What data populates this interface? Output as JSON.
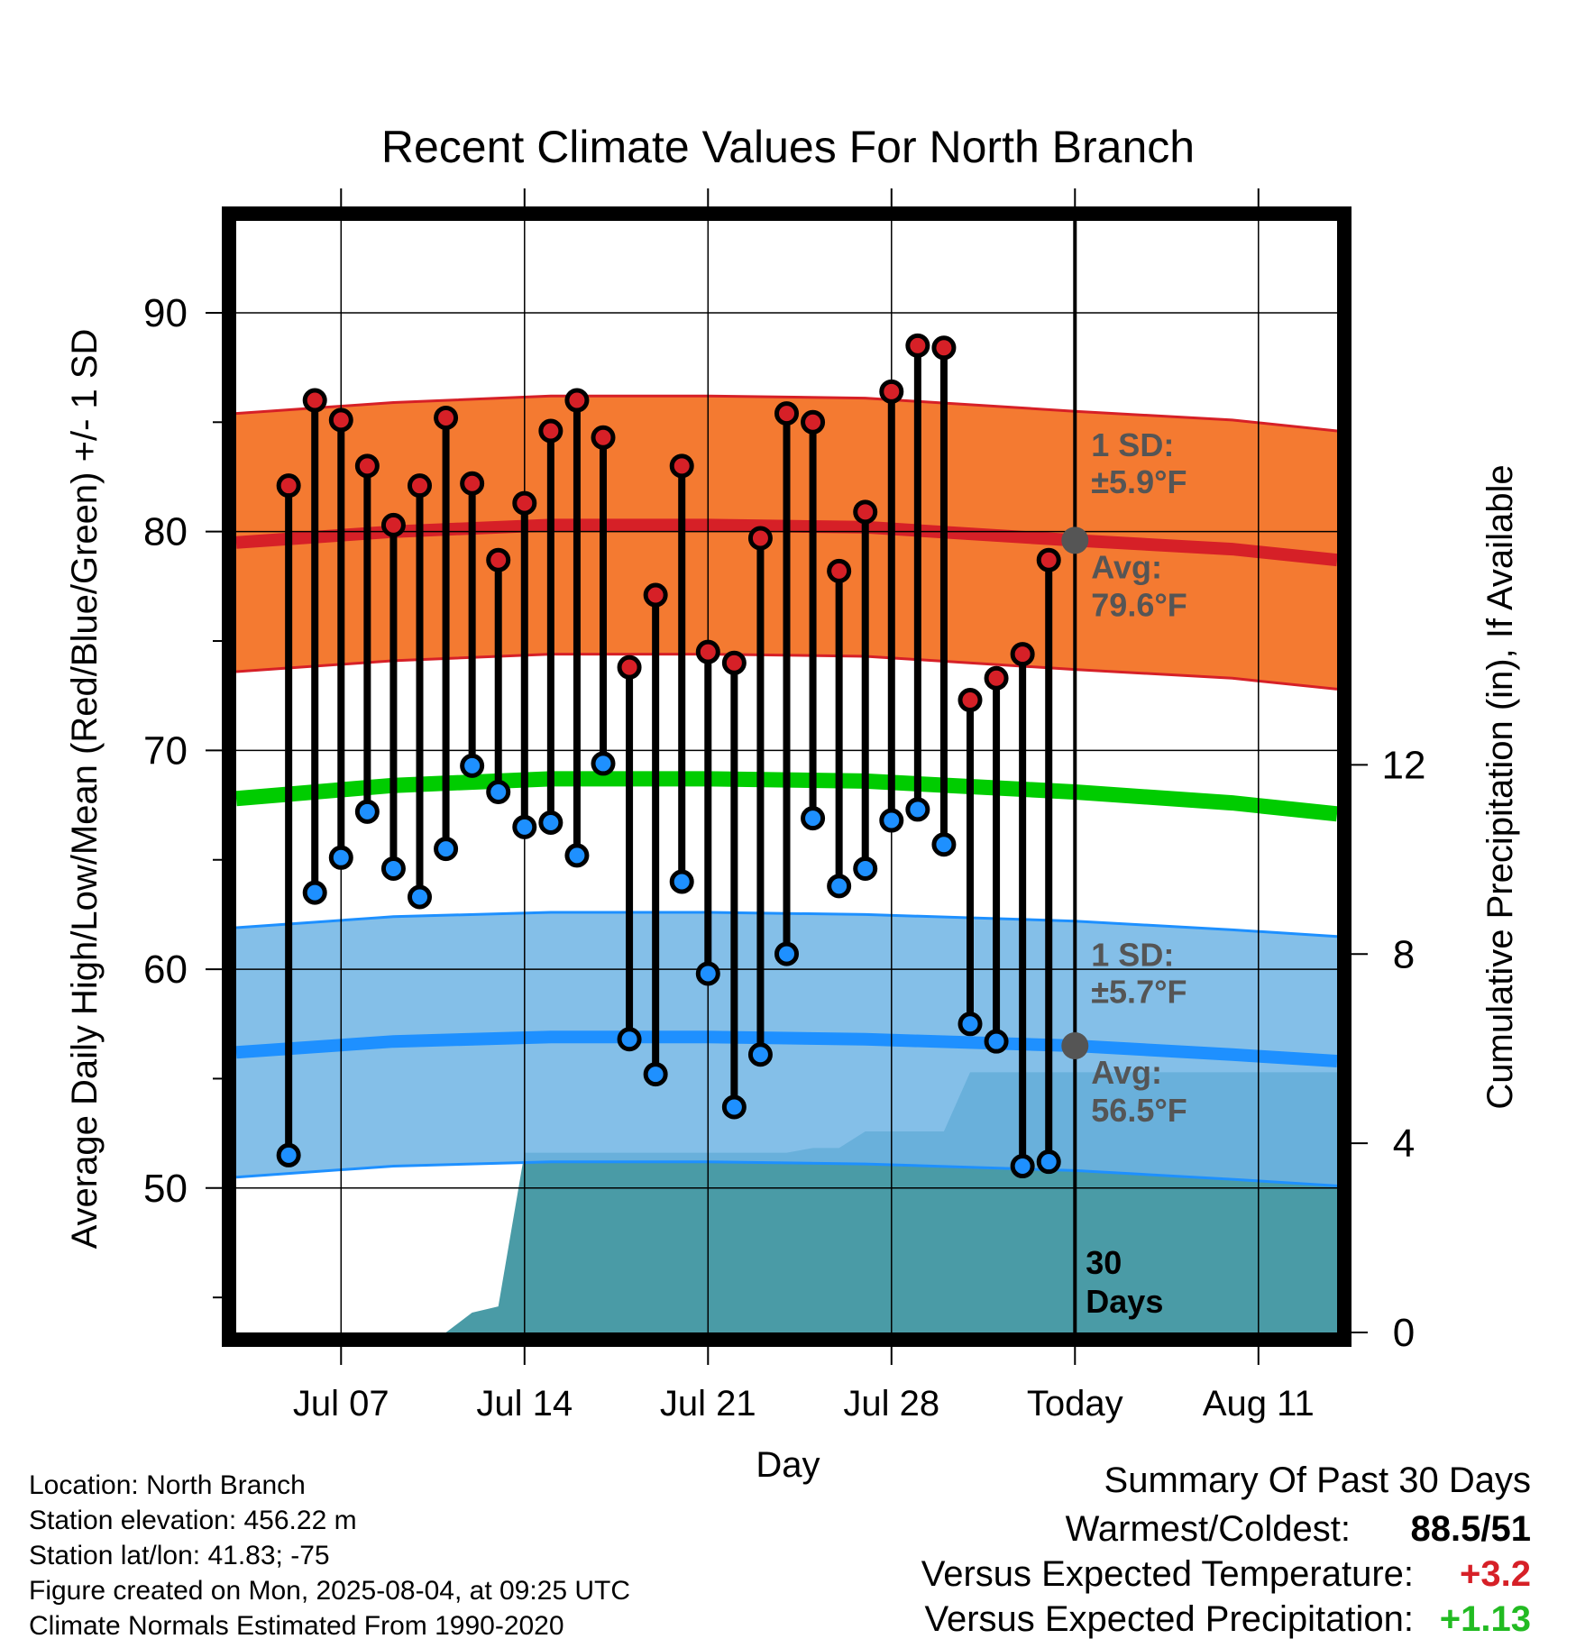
{
  "chart_data": {
    "type": "line",
    "title": "Recent Climate Values For North Branch",
    "xlabel": "Day",
    "ylabel": "Average Daily High/Low/Mean (Red/Blue/Green) +/- 1 SD",
    "y2label": "Cumulative Precipitation (in), If Available",
    "ylim": [
      43.4,
      94.2
    ],
    "y2lim": [
      0,
      23.5
    ],
    "yticks": [
      "50",
      "60",
      "70",
      "80",
      "90"
    ],
    "y2ticks": [
      "0",
      "4",
      "8",
      "12"
    ],
    "x_range_days": [
      "2025-07-03",
      "2025-08-14"
    ],
    "xticks": [
      {
        "date": "2025-07-07",
        "label": "Jul 07"
      },
      {
        "date": "2025-07-14",
        "label": "Jul 14"
      },
      {
        "date": "2025-07-21",
        "label": "Jul 21"
      },
      {
        "date": "2025-07-28",
        "label": "Jul 28"
      },
      {
        "date": "2025-08-04",
        "label": "Today"
      },
      {
        "date": "2025-08-11",
        "label": "Aug 11"
      }
    ],
    "grid": true,
    "today": "2025-08-04",
    "window_label": [
      "30",
      "Days"
    ],
    "normals": {
      "dates": [
        "2025-07-03",
        "2025-07-09",
        "2025-07-15",
        "2025-07-21",
        "2025-07-27",
        "2025-08-04",
        "2025-08-10",
        "2025-08-14"
      ],
      "high_avg": [
        79.5,
        80.0,
        80.3,
        80.3,
        80.2,
        79.6,
        79.2,
        78.7
      ],
      "high_sd": 5.9,
      "low_avg": [
        56.2,
        56.7,
        56.9,
        56.9,
        56.8,
        56.5,
        56.1,
        55.8
      ],
      "low_sd": 5.7,
      "mean_avg": [
        67.8,
        68.4,
        68.7,
        68.7,
        68.6,
        68.1,
        67.6,
        67.1
      ],
      "high_label": [
        "1 SD:",
        "±5.9°F",
        "Avg:",
        "79.6°F"
      ],
      "low_label": [
        "1 SD:",
        "±5.7°F",
        "Avg:",
        "56.5°F"
      ]
    },
    "series": [
      {
        "name": "High",
        "color": "#d62027",
        "dates": [
          "2025-07-05",
          "2025-07-06",
          "2025-07-07",
          "2025-07-08",
          "2025-07-09",
          "2025-07-10",
          "2025-07-11",
          "2025-07-12",
          "2025-07-13",
          "2025-07-14",
          "2025-07-15",
          "2025-07-16",
          "2025-07-17",
          "2025-07-18",
          "2025-07-19",
          "2025-07-20",
          "2025-07-21",
          "2025-07-22",
          "2025-07-23",
          "2025-07-24",
          "2025-07-25",
          "2025-07-26",
          "2025-07-27",
          "2025-07-28",
          "2025-07-29",
          "2025-07-30",
          "2025-07-31",
          "2025-08-01",
          "2025-08-02",
          "2025-08-03"
        ],
        "values": [
          82.1,
          86.0,
          85.1,
          83.0,
          80.3,
          82.1,
          85.2,
          82.2,
          78.7,
          81.3,
          84.6,
          86.0,
          84.3,
          73.8,
          77.1,
          83.0,
          74.5,
          74.0,
          79.7,
          85.4,
          85.0,
          78.2,
          80.9,
          86.4,
          88.5,
          88.4,
          72.3,
          73.3,
          74.4,
          78.7
        ]
      },
      {
        "name": "Low",
        "color": "#1e90ff",
        "dates": [
          "2025-07-05",
          "2025-07-06",
          "2025-07-07",
          "2025-07-08",
          "2025-07-09",
          "2025-07-10",
          "2025-07-11",
          "2025-07-12",
          "2025-07-13",
          "2025-07-14",
          "2025-07-15",
          "2025-07-16",
          "2025-07-17",
          "2025-07-18",
          "2025-07-19",
          "2025-07-20",
          "2025-07-21",
          "2025-07-22",
          "2025-07-23",
          "2025-07-24",
          "2025-07-25",
          "2025-07-26",
          "2025-07-27",
          "2025-07-28",
          "2025-07-29",
          "2025-07-30",
          "2025-07-31",
          "2025-08-01",
          "2025-08-02",
          "2025-08-03"
        ],
        "values": [
          51.5,
          63.5,
          65.1,
          67.2,
          64.6,
          63.3,
          65.5,
          69.3,
          68.1,
          66.5,
          66.7,
          65.2,
          69.4,
          56.8,
          55.2,
          64.0,
          59.8,
          53.7,
          56.1,
          60.7,
          66.9,
          63.8,
          64.6,
          66.8,
          67.3,
          65.7,
          57.5,
          56.7,
          51.0,
          51.2
        ]
      }
    ],
    "precip_cumulative": {
      "color": "#4a9ba6",
      "points": [
        [
          "2025-07-08",
          0.0
        ],
        [
          "2025-07-09",
          0.0
        ],
        [
          "2025-07-11",
          0.0
        ],
        [
          "2025-07-12",
          0.42
        ],
        [
          "2025-07-13",
          0.55
        ],
        [
          "2025-07-14",
          3.8
        ],
        [
          "2025-07-24",
          3.8
        ],
        [
          "2025-07-25",
          3.9
        ],
        [
          "2025-07-26",
          3.9
        ],
        [
          "2025-07-27",
          4.25
        ],
        [
          "2025-07-29",
          4.25
        ],
        [
          "2025-07-30",
          4.25
        ],
        [
          "2025-07-31",
          5.5
        ],
        [
          "2025-08-04",
          5.5
        ],
        [
          "2025-08-14",
          5.5
        ]
      ]
    }
  },
  "footer": {
    "location": "Location: North Branch",
    "elevation": "Station elevation: 456.22 m",
    "latlon": "Station lat/lon: 41.83; -75",
    "created": "Figure created on Mon, 2025-08-04, at 09:25 UTC",
    "normals": "Climate Normals Estimated From 1990-2020"
  },
  "summary": {
    "title": "Summary Of Past 30 Days",
    "warm_cold_label": "Warmest/Coldest:",
    "warm_cold_value": "88.5/51",
    "temp_label": "Versus Expected Temperature:",
    "temp_value": "+3.2",
    "temp_color": "#d62027",
    "precip_label": "Versus Expected Precipitation:",
    "precip_value": "+1.13",
    "precip_color": "#22bb22"
  }
}
